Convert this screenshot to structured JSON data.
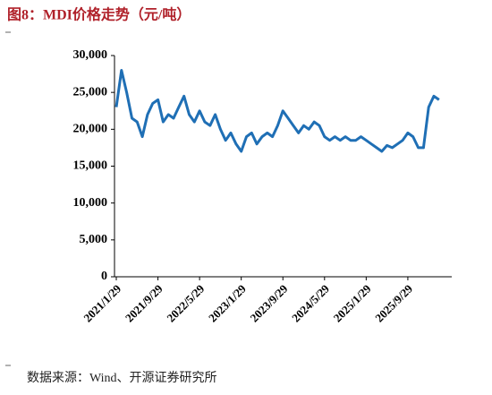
{
  "chart_data": {
    "type": "line",
    "title": "图8：MDI价格走势（元/吨）",
    "source": "数据来源：Wind、开源证券研究所",
    "categories": [
      "2021/1/29",
      null,
      null,
      null,
      null,
      null,
      null,
      null,
      "2021/9/29",
      null,
      null,
      null,
      null,
      null,
      null,
      null,
      "2022/5/29",
      null,
      null,
      null,
      null,
      null,
      null,
      null,
      "2023/1/29",
      null,
      null,
      null,
      null,
      null,
      null,
      null,
      "2023/9/29",
      null,
      null,
      null,
      null,
      null,
      null,
      null,
      "2024/5/29",
      null,
      null,
      null,
      null,
      null,
      null,
      null,
      "2025/1/29",
      null,
      null,
      null,
      null,
      null,
      null,
      null,
      "2025/9/29",
      null,
      null,
      null,
      null,
      null,
      null
    ],
    "series": [
      {
        "name": "MDI",
        "color": "#1f6fb5",
        "values": [
          23000,
          28000,
          25000,
          21500,
          21000,
          19000,
          22000,
          23500,
          24000,
          21000,
          22000,
          21500,
          23000,
          24500,
          22000,
          21000,
          22500,
          21000,
          20500,
          22000,
          20000,
          18500,
          19500,
          18000,
          17000,
          19000,
          19500,
          18000,
          19000,
          19500,
          19000,
          20500,
          22500,
          21500,
          20500,
          19500,
          20500,
          20000,
          21000,
          20500,
          19000,
          18500,
          19000,
          18500,
          19000,
          18500,
          18500,
          19000,
          18500,
          18000,
          17500,
          17000,
          17800,
          17500,
          18000,
          18500,
          19500,
          19000,
          17500,
          17500,
          23000,
          24500,
          24000
        ]
      }
    ],
    "ylim": [
      0,
      30000
    ],
    "yticks": [
      {
        "value": 0,
        "label": "0"
      },
      {
        "value": 5000,
        "label": "5,000"
      },
      {
        "value": 10000,
        "label": "10,000"
      },
      {
        "value": 15000,
        "label": "15,000"
      },
      {
        "value": 20000,
        "label": "20,000"
      },
      {
        "value": 25000,
        "label": "25,000"
      },
      {
        "value": 30000,
        "label": "30,000"
      }
    ]
  }
}
